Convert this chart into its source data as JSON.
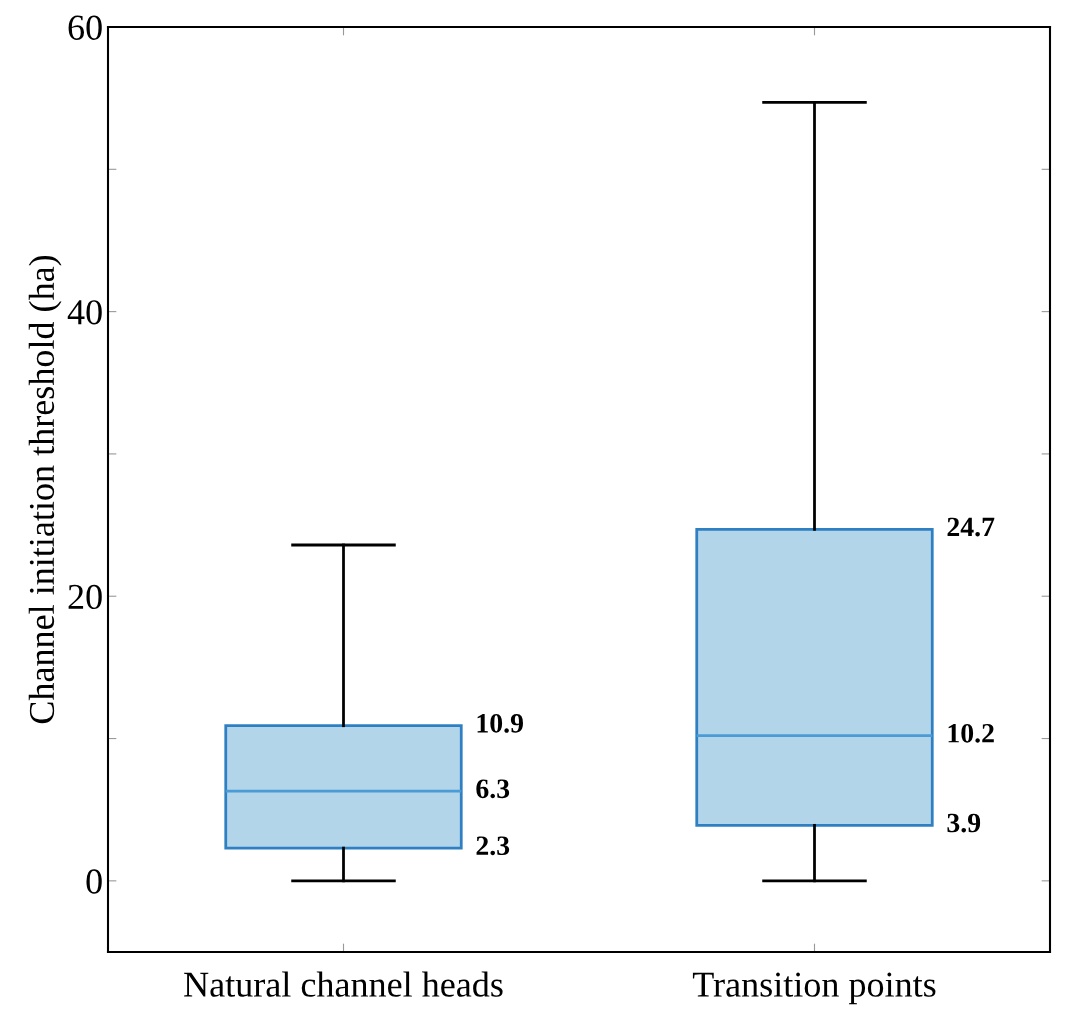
{
  "chart_data": {
    "type": "box",
    "ylabel": "Channel initiation threshold (ha)",
    "categories": [
      "Natural channel heads",
      "Transition points"
    ],
    "boxes": [
      {
        "low": 0,
        "q1": 2.3,
        "median": 6.3,
        "q3": 10.9,
        "high": 23.6
      },
      {
        "low": 0,
        "q1": 3.9,
        "median": 10.2,
        "q3": 24.7,
        "high": 54.7
      }
    ],
    "color": "#b3d5ea",
    "ylim": [
      -5,
      60
    ],
    "yticks": [
      0,
      {
        "value": 10,
        "label": null
      },
      20,
      {
        "value": 30,
        "label": null
      },
      40,
      {
        "value": 50,
        "label": null
      },
      60
    ],
    "grid": false,
    "annotations": [
      "10.9",
      "6.3",
      "2.3",
      "24.7",
      "10.2",
      "3.9"
    ]
  }
}
